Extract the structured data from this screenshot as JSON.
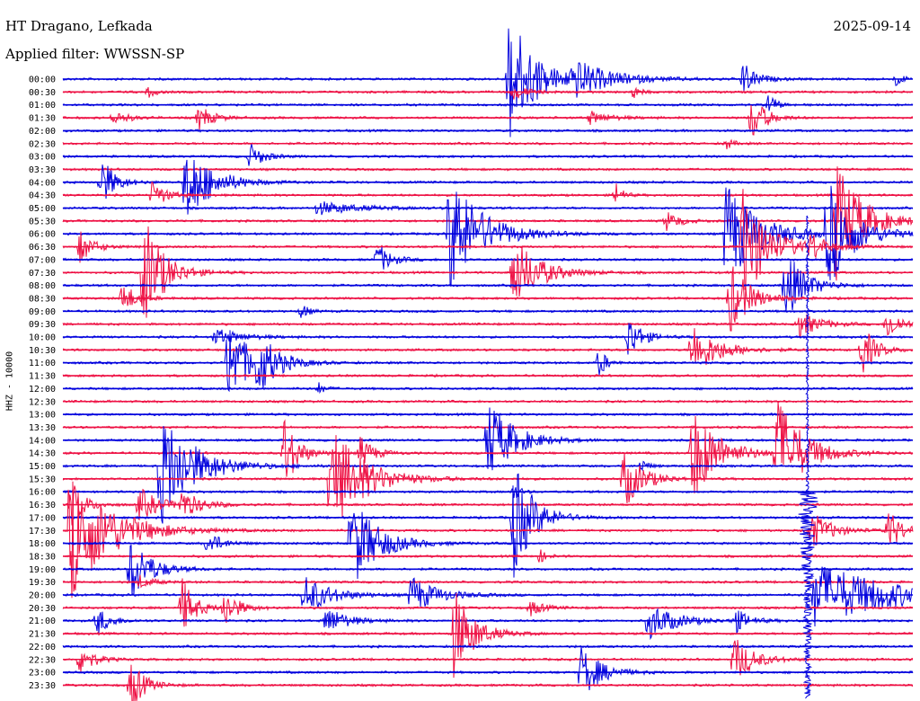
{
  "header": {
    "station": "HT Dragano, Lefkada",
    "date": "2025-09-14",
    "filter": "Applied filter: WWSSN-SP"
  },
  "chart_data": {
    "type": "line",
    "title": "HT Dragano, Lefkada",
    "ylabel": "HHZ - 10000",
    "grid": false,
    "colors": [
      "#0000dd",
      "#ee1144"
    ],
    "rows": [
      {
        "label": "00:00",
        "events": [
          [
            0.525,
            1.0,
            0.04
          ],
          [
            0.6,
            0.25,
            0.06
          ],
          [
            0.8,
            0.25,
            0.02
          ],
          [
            0.98,
            0.12,
            0.01
          ]
        ]
      },
      {
        "label": "00:30",
        "events": [
          [
            0.1,
            0.1,
            0.01
          ],
          [
            0.53,
            0.12,
            0.02
          ],
          [
            0.67,
            0.12,
            0.01
          ]
        ]
      },
      {
        "label": "01:00",
        "events": [
          [
            0.83,
            0.22,
            0.01
          ]
        ]
      },
      {
        "label": "01:30",
        "events": [
          [
            0.06,
            0.12,
            0.02
          ],
          [
            0.16,
            0.2,
            0.02
          ],
          [
            0.62,
            0.1,
            0.03
          ],
          [
            0.81,
            0.38,
            0.02
          ]
        ]
      },
      {
        "label": "02:00",
        "events": []
      },
      {
        "label": "02:30",
        "events": [
          [
            0.78,
            0.1,
            0.01
          ]
        ]
      },
      {
        "label": "03:00",
        "events": [
          [
            0.22,
            0.2,
            0.02
          ]
        ]
      },
      {
        "label": "03:30",
        "events": []
      },
      {
        "label": "04:00",
        "events": [
          [
            0.045,
            0.4,
            0.02
          ],
          [
            0.145,
            0.6,
            0.04
          ]
        ]
      },
      {
        "label": "04:30",
        "events": [
          [
            0.105,
            0.22,
            0.02
          ],
          [
            0.65,
            0.22,
            0.01
          ]
        ]
      },
      {
        "label": "05:00",
        "events": [
          [
            0.3,
            0.1,
            0.06
          ]
        ]
      },
      {
        "label": "05:30",
        "events": [
          [
            0.71,
            0.15,
            0.02
          ],
          [
            0.91,
            0.9,
            0.04
          ]
        ]
      },
      {
        "label": "06:00",
        "events": [
          [
            0.455,
            0.9,
            0.05
          ],
          [
            0.78,
            0.8,
            0.05
          ],
          [
            0.9,
            0.8,
            0.04
          ]
        ]
      },
      {
        "label": "06:30",
        "events": [
          [
            0.02,
            0.25,
            0.02
          ],
          [
            0.8,
            0.85,
            0.04
          ],
          [
            0.88,
            0.2,
            0.02
          ]
        ]
      },
      {
        "label": "07:00",
        "events": [
          [
            0.37,
            0.25,
            0.02
          ]
        ]
      },
      {
        "label": "07:30",
        "events": [
          [
            0.095,
            0.9,
            0.03
          ],
          [
            0.53,
            0.55,
            0.04
          ]
        ]
      },
      {
        "label": "08:00",
        "events": [
          [
            0.85,
            0.55,
            0.03
          ]
        ]
      },
      {
        "label": "08:30",
        "events": [
          [
            0.07,
            0.25,
            0.02
          ],
          [
            0.785,
            0.55,
            0.03
          ]
        ]
      },
      {
        "label": "09:00",
        "events": [
          [
            0.28,
            0.15,
            0.01
          ]
        ]
      },
      {
        "label": "09:30",
        "events": [
          [
            0.865,
            0.22,
            0.03
          ],
          [
            0.97,
            0.25,
            0.02
          ]
        ]
      },
      {
        "label": "10:00",
        "events": [
          [
            0.18,
            0.12,
            0.04
          ],
          [
            0.665,
            0.35,
            0.02
          ]
        ]
      },
      {
        "label": "10:30",
        "events": [
          [
            0.74,
            0.4,
            0.04
          ],
          [
            0.94,
            0.4,
            0.02
          ]
        ]
      },
      {
        "label": "11:00",
        "events": [
          [
            0.195,
            0.7,
            0.03
          ],
          [
            0.23,
            0.4,
            0.03
          ],
          [
            0.63,
            0.3,
            0.01
          ]
        ]
      },
      {
        "label": "11:30",
        "events": []
      },
      {
        "label": "12:00",
        "events": [
          [
            0.3,
            0.1,
            0.01
          ]
        ]
      },
      {
        "label": "12:30",
        "events": []
      },
      {
        "label": "13:00",
        "events": []
      },
      {
        "label": "13:30",
        "events": []
      },
      {
        "label": "14:00",
        "events": [
          [
            0.5,
            0.6,
            0.04
          ]
        ]
      },
      {
        "label": "14:30",
        "events": [
          [
            0.26,
            0.6,
            0.02
          ],
          [
            0.35,
            0.25,
            0.02
          ],
          [
            0.74,
            0.75,
            0.04
          ],
          [
            0.84,
            0.85,
            0.04
          ]
        ]
      },
      {
        "label": "15:00",
        "events": [
          [
            0.115,
            0.9,
            0.05
          ],
          [
            0.68,
            0.12,
            0.01
          ]
        ]
      },
      {
        "label": "15:30",
        "events": [
          [
            0.315,
            0.85,
            0.05
          ],
          [
            0.66,
            0.45,
            0.03
          ]
        ]
      },
      {
        "label": "16:00",
        "events": [
          [
            0.53,
            0.15,
            0.01
          ]
        ]
      },
      {
        "label": "16:30",
        "events": [
          [
            0.01,
            0.35,
            0.02
          ],
          [
            0.09,
            0.25,
            0.03
          ],
          [
            0.14,
            0.2,
            0.03
          ]
        ]
      },
      {
        "label": "17:00",
        "events": [
          [
            0.53,
            0.9,
            0.03
          ]
        ]
      },
      {
        "label": "17:30",
        "events": [
          [
            0.01,
            1.0,
            0.06
          ],
          [
            0.88,
            0.3,
            0.03
          ],
          [
            0.97,
            0.35,
            0.02
          ]
        ]
      },
      {
        "label": "18:00",
        "events": [
          [
            0.17,
            0.2,
            0.02
          ],
          [
            0.34,
            0.7,
            0.04
          ]
        ]
      },
      {
        "label": "18:30",
        "events": [
          [
            0.56,
            0.12,
            0.01
          ]
        ]
      },
      {
        "label": "19:00",
        "events": [
          [
            0.08,
            0.5,
            0.03
          ]
        ]
      },
      {
        "label": "19:30",
        "events": [
          [
            0.09,
            0.1,
            0.02
          ]
        ]
      },
      {
        "label": "20:00",
        "events": [
          [
            0.285,
            0.3,
            0.04
          ],
          [
            0.41,
            0.28,
            0.04
          ],
          [
            0.885,
            0.5,
            0.12
          ]
        ]
      },
      {
        "label": "20:30",
        "events": [
          [
            0.14,
            0.45,
            0.02
          ],
          [
            0.19,
            0.3,
            0.02
          ],
          [
            0.55,
            0.12,
            0.02
          ]
        ]
      },
      {
        "label": "21:00",
        "events": [
          [
            0.04,
            0.22,
            0.02
          ],
          [
            0.31,
            0.22,
            0.03
          ],
          [
            0.69,
            0.28,
            0.04
          ],
          [
            0.79,
            0.2,
            0.02
          ]
        ]
      },
      {
        "label": "21:30",
        "events": [
          [
            0.46,
            0.7,
            0.03
          ]
        ]
      },
      {
        "label": "22:00",
        "events": []
      },
      {
        "label": "22:30",
        "events": [
          [
            0.02,
            0.25,
            0.02
          ],
          [
            0.79,
            0.35,
            0.03
          ]
        ]
      },
      {
        "label": "23:00",
        "events": [
          [
            0.61,
            0.4,
            0.03
          ]
        ]
      },
      {
        "label": "23:30",
        "events": [
          [
            0.08,
            0.4,
            0.02
          ]
        ]
      }
    ],
    "big_event": {
      "row": 33,
      "position": 0.876,
      "extent_rows": 16,
      "note": "large vertical trace crossing from 16:30 through 23:30"
    }
  }
}
